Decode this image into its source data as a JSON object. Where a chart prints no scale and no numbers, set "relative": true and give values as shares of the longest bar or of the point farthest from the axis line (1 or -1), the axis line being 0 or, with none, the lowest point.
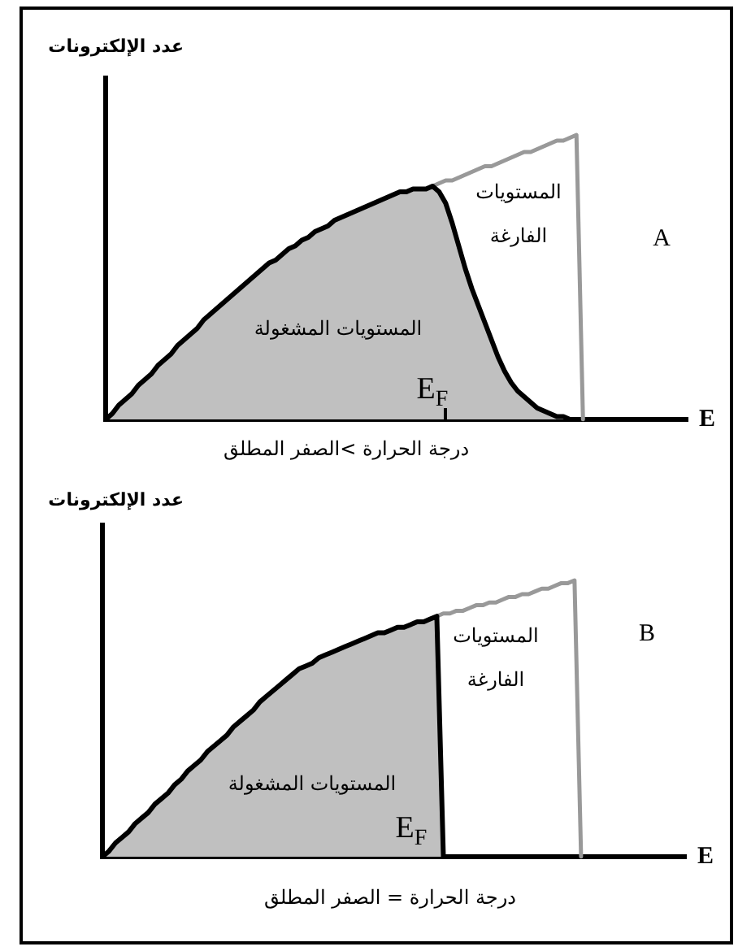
{
  "chart_data": [
    {
      "type": "area",
      "ylabel": "عدد الإلكترونات",
      "xlabel": "E",
      "relative": true,
      "categories": [
        null,
        null,
        null,
        null,
        null,
        null,
        null,
        null,
        null,
        null,
        null,
        null,
        null,
        null,
        null,
        null,
        null,
        null,
        null,
        null,
        null,
        null,
        null,
        null,
        null,
        null,
        null,
        null,
        null,
        null,
        null,
        null,
        null,
        null,
        null,
        null,
        null,
        null,
        null,
        null,
        null,
        null,
        null,
        null,
        null,
        null,
        null,
        null,
        null,
        null,
        null,
        null,
        null,
        null,
        null,
        null,
        null,
        null,
        null,
        null,
        null,
        null,
        null,
        null,
        null,
        null,
        null,
        null,
        null,
        null,
        null,
        null,
        null,
        null,
        null,
        null,
        null,
        null,
        null,
        null,
        null,
        null,
        null,
        null,
        null,
        null,
        null,
        null,
        null,
        null
      ],
      "series": [
        {
          "name": "المستويات المشغولة",
          "color": "#c0c0c0",
          "values": [
            0,
            0.02,
            0.05,
            0.07,
            0.09,
            0.12,
            0.14,
            0.16,
            0.19,
            0.21,
            0.23,
            0.26,
            0.28,
            0.3,
            0.32,
            0.35,
            0.37,
            0.39,
            0.41,
            0.43,
            0.45,
            0.47,
            0.49,
            0.51,
            0.53,
            0.55,
            0.56,
            0.58,
            0.6,
            0.61,
            0.63,
            0.64,
            0.66,
            0.67,
            0.68,
            0.7,
            0.71,
            0.72,
            0.73,
            0.74,
            0.75,
            0.76,
            0.77,
            0.78,
            0.79,
            0.8,
            0.8,
            0.81,
            0.81,
            0.81,
            0.82,
            0.8,
            0.76,
            0.69,
            0.61,
            0.53,
            0.46,
            0.4,
            0.34,
            0.28,
            0.22,
            0.17,
            0.13,
            0.1,
            0.08,
            0.06,
            0.04,
            0.03,
            0.02,
            0.01,
            0.01,
            0,
            0,
            null,
            null,
            null,
            null,
            null,
            null,
            null,
            null,
            null,
            null,
            null,
            null,
            null,
            null,
            null,
            null,
            null
          ]
        },
        {
          "name": "المستويات الفارغة",
          "type": "line",
          "color": "#999999",
          "values": [
            null,
            null,
            null,
            null,
            null,
            null,
            null,
            null,
            null,
            null,
            null,
            null,
            null,
            null,
            null,
            null,
            null,
            null,
            null,
            null,
            null,
            null,
            null,
            null,
            null,
            null,
            null,
            null,
            null,
            null,
            null,
            null,
            null,
            null,
            null,
            null,
            null,
            null,
            null,
            null,
            null,
            null,
            null,
            null,
            null,
            null,
            null,
            null,
            null,
            null,
            0.82,
            0.83,
            0.84,
            0.84,
            0.85,
            0.86,
            0.87,
            0.88,
            0.89,
            0.89,
            0.9,
            0.91,
            0.92,
            0.93,
            0.94,
            0.94,
            0.95,
            0.96,
            0.97,
            0.98,
            0.98,
            0.99,
            1,
            0,
            null,
            null,
            null,
            null,
            null,
            null,
            null,
            null,
            null,
            null,
            null,
            null,
            null,
            null,
            null,
            null
          ]
        }
      ],
      "annotations": [
        "A",
        "E$_{F}$",
        "درجة الحرارة >الصفر المطلق"
      ]
    },
    {
      "type": "area",
      "ylabel": "عدد الإلكترونات",
      "xlabel": "E",
      "relative": true,
      "categories": [
        null,
        null,
        null,
        null,
        null,
        null,
        null,
        null,
        null,
        null,
        null,
        null,
        null,
        null,
        null,
        null,
        null,
        null,
        null,
        null,
        null,
        null,
        null,
        null,
        null,
        null,
        null,
        null,
        null,
        null,
        null,
        null,
        null,
        null,
        null,
        null,
        null,
        null,
        null,
        null,
        null,
        null,
        null,
        null,
        null,
        null,
        null,
        null,
        null,
        null,
        null,
        null,
        null,
        null,
        null,
        null,
        null,
        null,
        null,
        null,
        null,
        null,
        null,
        null,
        null,
        null,
        null,
        null,
        null,
        null,
        null,
        null,
        null,
        null,
        null,
        null,
        null,
        null,
        null,
        null,
        null,
        null,
        null,
        null,
        null,
        null,
        null,
        null,
        null,
        null
      ],
      "series": [
        {
          "name": "المستويات المشغولة",
          "color": "#c0c0c0",
          "values": [
            0,
            0.02,
            0.05,
            0.07,
            0.09,
            0.12,
            0.14,
            0.16,
            0.19,
            0.21,
            0.23,
            0.26,
            0.28,
            0.31,
            0.33,
            0.35,
            0.38,
            0.4,
            0.42,
            0.44,
            0.47,
            0.49,
            0.51,
            0.53,
            0.56,
            0.58,
            0.6,
            0.62,
            0.64,
            0.66,
            0.68,
            0.69,
            0.7,
            0.72,
            0.73,
            0.74,
            0.75,
            0.76,
            0.77,
            0.78,
            0.79,
            0.8,
            0.81,
            0.81,
            0.82,
            0.83,
            0.83,
            0.84,
            0.85,
            0.85,
            0.86,
            0.87,
            0,
            null,
            null,
            null,
            null,
            null,
            null,
            null,
            null,
            null,
            null,
            null,
            null,
            null,
            null,
            null,
            null,
            null,
            null,
            null,
            null,
            null,
            null,
            null,
            null,
            null,
            null,
            null,
            null,
            null,
            null,
            null,
            null,
            null,
            null,
            null,
            null,
            null
          ]
        },
        {
          "name": "المستويات الفارغة",
          "type": "line",
          "color": "#999999",
          "values": [
            null,
            null,
            null,
            null,
            null,
            null,
            null,
            null,
            null,
            null,
            null,
            null,
            null,
            null,
            null,
            null,
            null,
            null,
            null,
            null,
            null,
            null,
            null,
            null,
            null,
            null,
            null,
            null,
            null,
            null,
            null,
            null,
            null,
            null,
            null,
            null,
            null,
            null,
            null,
            null,
            null,
            null,
            null,
            null,
            null,
            null,
            null,
            null,
            null,
            null,
            null,
            0.87,
            0.88,
            0.88,
            0.89,
            0.89,
            0.9,
            0.91,
            0.91,
            0.92,
            0.92,
            0.93,
            0.94,
            0.94,
            0.95,
            0.95,
            0.96,
            0.97,
            0.97,
            0.98,
            0.99,
            0.99,
            1,
            0,
            null,
            null,
            null,
            null,
            null,
            null,
            null,
            null,
            null,
            null,
            null,
            null,
            null,
            null,
            null,
            null
          ]
        }
      ],
      "annotations": [
        "B",
        "E$_{F}$",
        "درجة الحرارة = الصفر المطلق"
      ]
    }
  ]
}
